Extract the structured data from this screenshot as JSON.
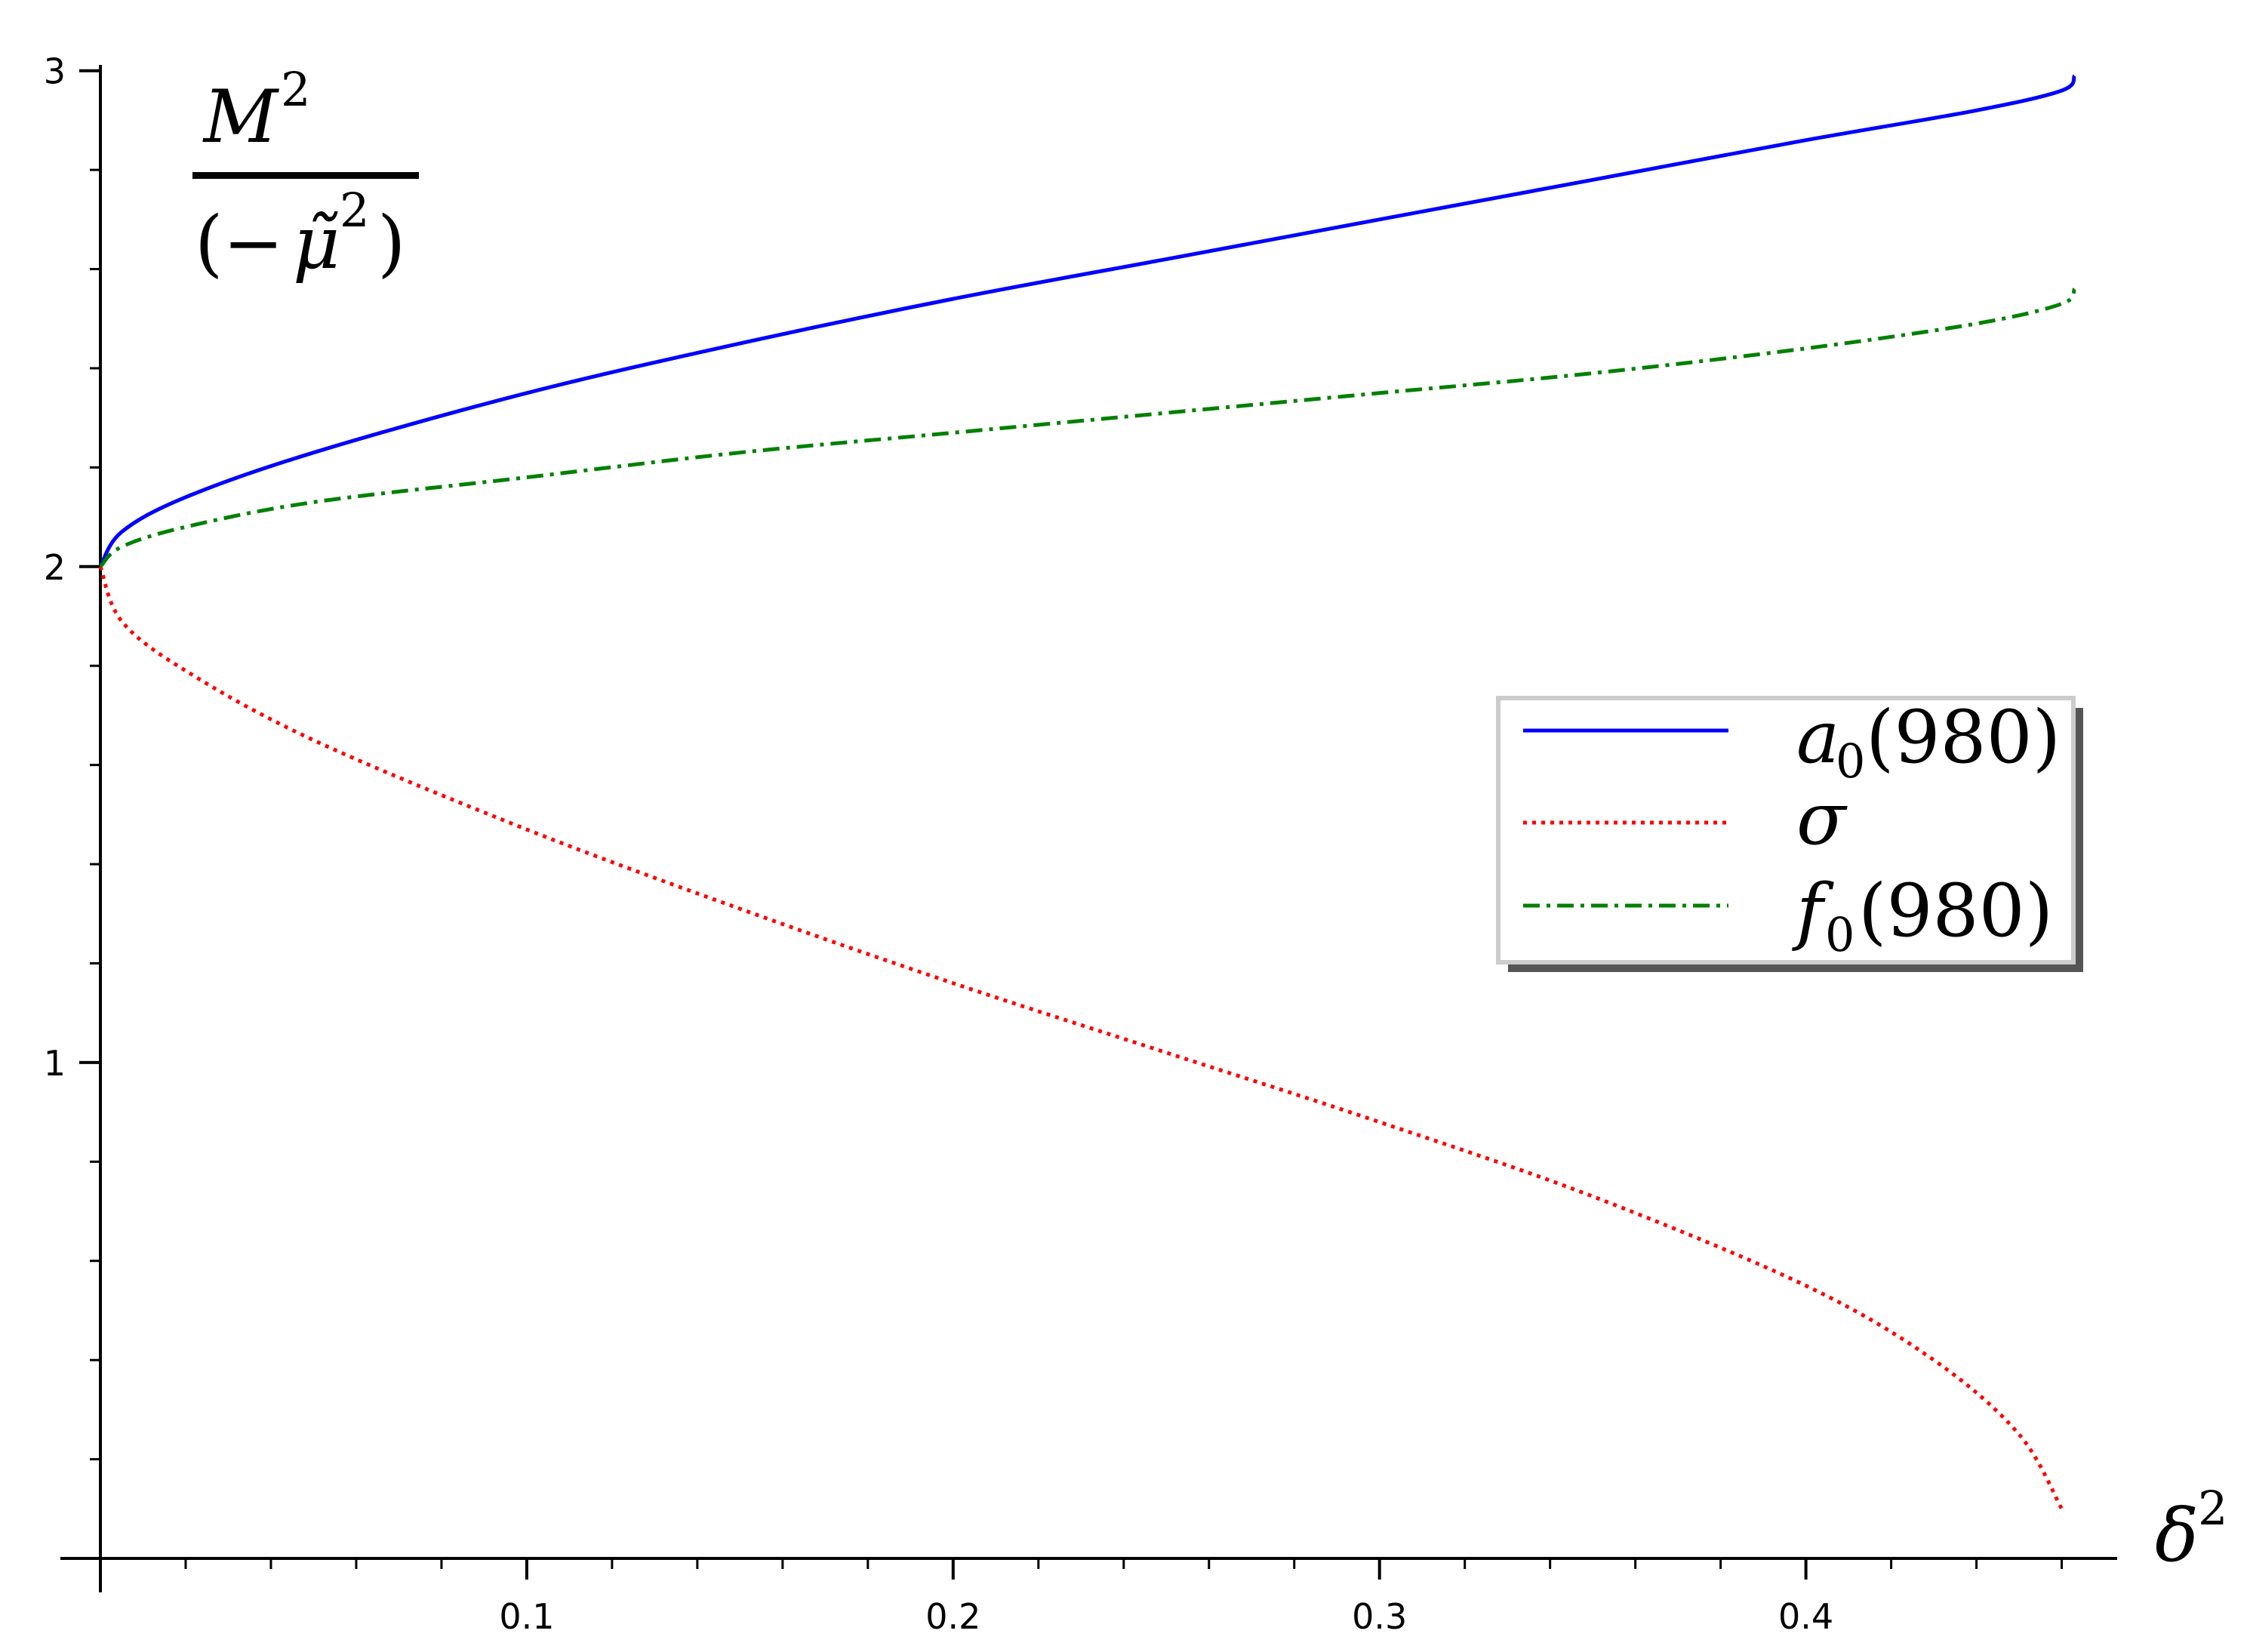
{
  "chart_data": {
    "type": "line",
    "ylabel": {
      "numerator": "M",
      "numerator_sup": "2",
      "denominator_open": "(−",
      "denominator_var": "μ̃",
      "denominator_sup": "2",
      "denominator_close": ")"
    },
    "xlabel": {
      "var": "δ",
      "sup": "2"
    },
    "xlim": [
      0,
      0.473
    ],
    "ylim": [
      0,
      3.03
    ],
    "x_ticks": [
      0.1,
      0.2,
      0.3,
      0.4
    ],
    "x_tick_labels": [
      "0.1",
      "0.2",
      "0.3",
      "0.4"
    ],
    "y_ticks": [
      1,
      2,
      3
    ],
    "y_tick_labels": [
      "1",
      "2",
      "3"
    ],
    "grid": false,
    "legend_position": "center-right",
    "series": [
      {
        "name": "a0(980)",
        "legend": {
          "base": "a",
          "sub": "0",
          "rest": "(980)"
        },
        "color": "#0000ff",
        "style": "solid",
        "x": [
          0,
          0.005,
          0.02,
          0.05,
          0.1,
          0.15,
          0.2,
          0.25,
          0.3,
          0.35,
          0.4,
          0.44,
          0.46,
          0.463
        ],
        "y": [
          2.0,
          2.07,
          2.14,
          2.23,
          2.35,
          2.45,
          2.54,
          2.62,
          2.7,
          2.78,
          2.86,
          2.92,
          2.96,
          2.99
        ]
      },
      {
        "name": "σ",
        "legend": {
          "base": "σ",
          "sub": "",
          "rest": ""
        },
        "color": "#ff0000",
        "style": "dotted",
        "x": [
          0,
          0.005,
          0.02,
          0.05,
          0.1,
          0.15,
          0.2,
          0.25,
          0.3,
          0.35,
          0.4,
          0.43,
          0.45,
          0.46
        ],
        "y": [
          2.0,
          1.89,
          1.79,
          1.65,
          1.47,
          1.31,
          1.16,
          1.02,
          0.88,
          0.73,
          0.55,
          0.4,
          0.25,
          0.1
        ]
      },
      {
        "name": "f0(980)",
        "legend": {
          "base": "f",
          "sub": "0",
          "rest": "(980)"
        },
        "color": "#008000",
        "style": "dashdot",
        "x": [
          0,
          0.005,
          0.02,
          0.05,
          0.1,
          0.15,
          0.2,
          0.25,
          0.3,
          0.35,
          0.4,
          0.44,
          0.46,
          0.463
        ],
        "y": [
          2.0,
          2.04,
          2.08,
          2.13,
          2.18,
          2.23,
          2.27,
          2.31,
          2.35,
          2.39,
          2.44,
          2.49,
          2.53,
          2.56
        ]
      }
    ]
  }
}
